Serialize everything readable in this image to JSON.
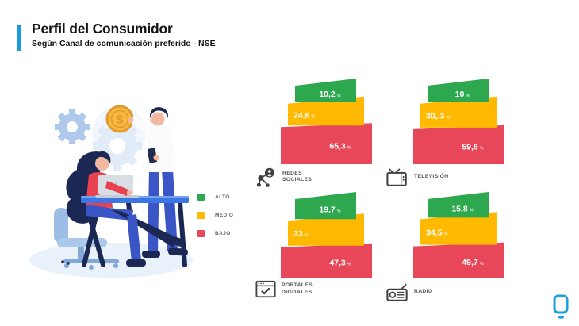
{
  "header": {
    "title": "Perfil del Consumidor",
    "subtitle": "Según Canal de comunicación preferido - NSE"
  },
  "colors": {
    "accent_blue": "#1B9CD8",
    "alto_green": "#2EA84F",
    "medio_yellow": "#FFB900",
    "bajo_red": "#E8475A",
    "logo_blue": "#1AA0DC"
  },
  "legend": {
    "items": [
      {
        "label": "ALTO",
        "color": "#2EA84F"
      },
      {
        "label": "MEDIO",
        "color": "#FFB900"
      },
      {
        "label": "BAJO",
        "color": "#E8475A"
      }
    ]
  },
  "chart_data": {
    "type": "bar",
    "subtype": "stacked-trapezoid-pyramid",
    "title": "Perfil del Consumidor",
    "subtitle": "Según Canal de comunicación preferido - NSE",
    "unit": "%",
    "segments": [
      "ALTO",
      "MEDIO",
      "BAJO"
    ],
    "segment_colors": [
      "#2EA84F",
      "#FFB900",
      "#E8475A"
    ],
    "legend_position": "left",
    "groups": [
      {
        "name": "Redes Sociales",
        "label_lines": [
          "REDES",
          "SOCIALES"
        ],
        "icon": "share-network-icon",
        "values": [
          10.2,
          24.6,
          65.3
        ],
        "display": [
          "10,2",
          "24,6",
          "65,3"
        ]
      },
      {
        "name": "Televisión",
        "label_lines": [
          "TELEVISIÓN"
        ],
        "icon": "tv-icon",
        "values": [
          10,
          30.3,
          59.8
        ],
        "display": [
          "10",
          "30,.3",
          "59,8"
        ]
      },
      {
        "name": "Portales Digitales",
        "label_lines": [
          "PORTALES",
          "DIGITALES"
        ],
        "icon": "browser-check-icon",
        "values": [
          19.7,
          33,
          47.3
        ],
        "display": [
          "19,7",
          "33",
          "47,3"
        ]
      },
      {
        "name": "Radio",
        "label_lines": [
          "RADIO"
        ],
        "icon": "radio-icon",
        "values": [
          15.8,
          34.5,
          49.7
        ],
        "display": [
          "15,8",
          "34,5",
          "49,7"
        ]
      }
    ]
  }
}
